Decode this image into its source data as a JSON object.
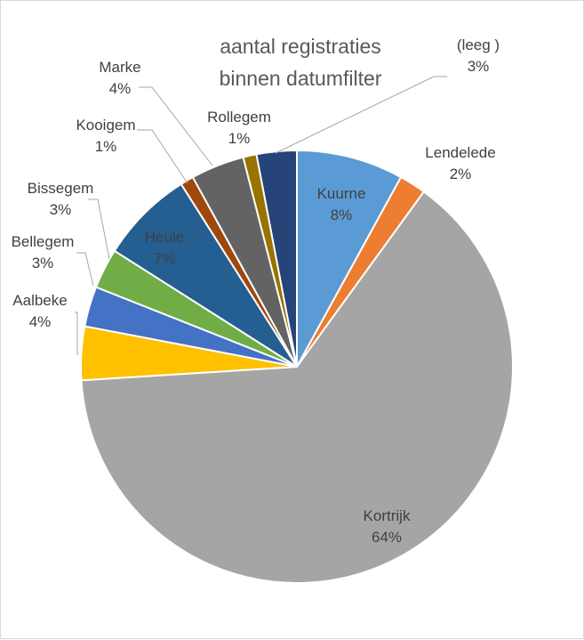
{
  "chart_data": {
    "type": "pie",
    "title": [
      "aantal registraties",
      "binnen datumfilter"
    ],
    "legend": "none",
    "slices": [
      {
        "name": "Kuurne",
        "value": 8,
        "label": "8%",
        "color": "#5b9bd5"
      },
      {
        "name": "Lendelede",
        "value": 2,
        "label": "2%",
        "color": "#ed7d31"
      },
      {
        "name": "Kortrijk",
        "value": 64,
        "label": "64%",
        "color": "#a5a5a5"
      },
      {
        "name": "Aalbeke",
        "value": 4,
        "label": "4%",
        "color": "#ffc000"
      },
      {
        "name": "Bellegem",
        "value": 3,
        "label": "3%",
        "color": "#4472c4"
      },
      {
        "name": "Bissegem",
        "value": 3,
        "label": "3%",
        "color": "#70ad47"
      },
      {
        "name": "Heule",
        "value": 7,
        "label": "7%",
        "color": "#255e91"
      },
      {
        "name": "Kooigem",
        "value": 1,
        "label": "1%",
        "color": "#9e480e"
      },
      {
        "name": "Marke",
        "value": 4,
        "label": "4%",
        "color": "#636363"
      },
      {
        "name": "Rollegem",
        "value": 1,
        "label": "1%",
        "color": "#997300"
      },
      {
        "name": "(leeg )",
        "value": 3,
        "label": "3%",
        "color": "#264478"
      }
    ]
  }
}
